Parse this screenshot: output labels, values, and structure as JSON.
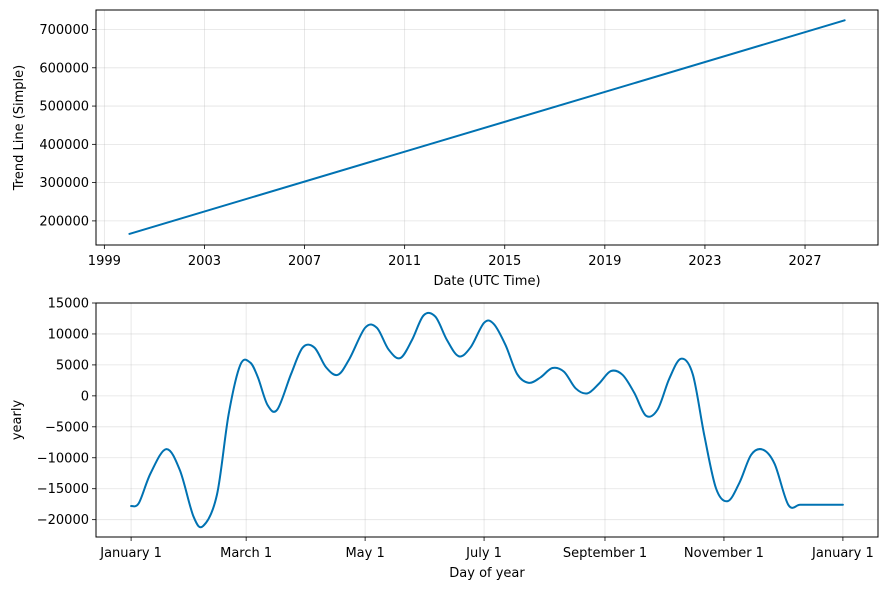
{
  "chart_data": [
    {
      "type": "line",
      "xlabel": "Date (UTC Time)",
      "ylabel": "Trend Line (Simple)",
      "x_axis": "date",
      "xlim": [
        "1998-09-01",
        "2029-12-01"
      ],
      "ylim": [
        137000,
        751000
      ],
      "grid": true,
      "x_ticks": [
        {
          "value": "1999-01-01",
          "label": "1999"
        },
        {
          "value": "2003-01-01",
          "label": "2003"
        },
        {
          "value": "2007-01-01",
          "label": "2007"
        },
        {
          "value": "2011-01-01",
          "label": "2011"
        },
        {
          "value": "2015-01-01",
          "label": "2015"
        },
        {
          "value": "2019-01-01",
          "label": "2019"
        },
        {
          "value": "2023-01-01",
          "label": "2023"
        },
        {
          "value": "2027-01-01",
          "label": "2027"
        }
      ],
      "y_ticks": [
        {
          "value": 200000,
          "label": "200000"
        },
        {
          "value": 300000,
          "label": "300000"
        },
        {
          "value": 400000,
          "label": "400000"
        },
        {
          "value": 500000,
          "label": "500000"
        },
        {
          "value": 600000,
          "label": "600000"
        },
        {
          "value": 700000,
          "label": "700000"
        }
      ],
      "series": [
        {
          "color": "#0072B2",
          "x": [
            "2000-01-01",
            "2028-08-01"
          ],
          "y": [
            166000,
            724000
          ]
        }
      ]
    },
    {
      "type": "line",
      "xlabel": "Day of year",
      "ylabel": "yearly",
      "x_axis": "day-of-year",
      "xlim": [
        -18,
        383
      ],
      "ylim": [
        -22800,
        15000
      ],
      "grid": true,
      "x_ticks": [
        {
          "value": 0,
          "label": "January 1"
        },
        {
          "value": 59,
          "label": "March 1"
        },
        {
          "value": 120,
          "label": "May 1"
        },
        {
          "value": 181,
          "label": "July 1"
        },
        {
          "value": 243,
          "label": "September 1"
        },
        {
          "value": 304,
          "label": "November 1"
        },
        {
          "value": 365,
          "label": "January 1"
        }
      ],
      "y_ticks": [
        {
          "value": -20000,
          "label": "−20000"
        },
        {
          "value": -15000,
          "label": "−15000"
        },
        {
          "value": -10000,
          "label": "−10000"
        },
        {
          "value": -5000,
          "label": "−5000"
        },
        {
          "value": 0,
          "label": "0"
        },
        {
          "value": 5000,
          "label": "5000"
        },
        {
          "value": 10000,
          "label": "10000"
        },
        {
          "value": 15000,
          "label": "15000"
        }
      ],
      "series": [
        {
          "color": "#0072B2",
          "x": [
            0,
            4,
            10,
            18,
            25,
            32,
            37,
            44,
            50,
            56,
            61,
            65,
            70,
            75,
            82,
            88,
            94,
            100,
            106,
            112,
            120,
            126,
            132,
            138,
            144,
            150,
            156,
            162,
            168,
            174,
            181,
            186,
            192,
            198,
            204,
            210,
            216,
            222,
            228,
            234,
            240,
            246,
            252,
            258,
            264,
            270,
            276,
            282,
            288,
            294,
            300,
            306,
            312,
            318,
            324,
            330,
            337,
            343,
            350,
            357,
            365
          ],
          "y": [
            -17800,
            -17300,
            -12500,
            -8600,
            -12000,
            -19500,
            -21000,
            -16000,
            -3000,
            5000,
            5400,
            3000,
            -1500,
            -2200,
            3500,
            7800,
            7800,
            4600,
            3400,
            6000,
            11000,
            11000,
            7500,
            6100,
            9000,
            13000,
            12800,
            9000,
            6400,
            7800,
            11800,
            11600,
            8200,
            3500,
            2100,
            3000,
            4500,
            3900,
            1200,
            400,
            2000,
            4000,
            3400,
            500,
            -3200,
            -2200,
            2800,
            6000,
            3500,
            -6500,
            -15000,
            -17000,
            -14000,
            -9500,
            -8700,
            -11000,
            -17600,
            -17600,
            -17600,
            -17600,
            -17600
          ]
        }
      ]
    }
  ]
}
